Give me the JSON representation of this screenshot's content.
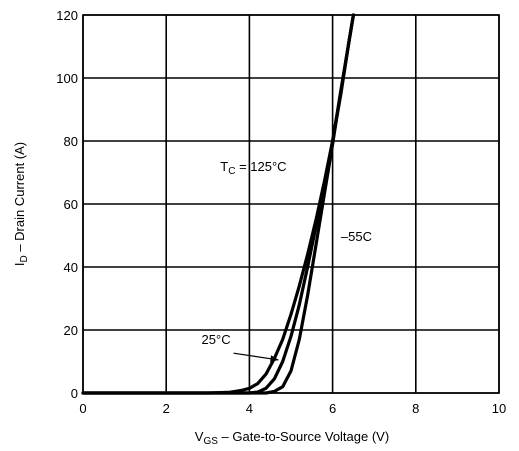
{
  "chart_data": {
    "type": "line",
    "title": "",
    "xlabel": {
      "main": "V",
      "sub": "GS",
      "rest": " – Gate-to-Source Voltage (V)"
    },
    "ylabel": {
      "main": "I",
      "sub": "D",
      "rest": " – Drain Current (A)"
    },
    "xlim": [
      0,
      10
    ],
    "ylim": [
      0,
      120
    ],
    "xticks": [
      "0",
      "2",
      "4",
      "6",
      "8",
      "10"
    ],
    "yticks": [
      "0",
      "20",
      "40",
      "60",
      "80",
      "100",
      "120"
    ],
    "grid": true,
    "series": [
      {
        "name": "T_C = 125°C",
        "x": [
          0,
          3.0,
          3.5,
          3.8,
          4.0,
          4.2,
          4.4,
          4.6,
          4.8,
          5.0,
          5.2,
          5.4,
          5.6,
          5.8,
          6.0,
          6.2,
          6.4,
          6.5
        ],
        "y": [
          0,
          0,
          0.2,
          0.8,
          1.5,
          3.0,
          6.0,
          11.0,
          17.0,
          25.0,
          34.0,
          44.0,
          55.0,
          67.0,
          80.0,
          95.0,
          112.0,
          120.0
        ]
      },
      {
        "name": "25°C",
        "x": [
          0,
          4.0,
          4.2,
          4.4,
          4.6,
          4.8,
          5.0,
          5.2,
          5.4,
          5.6,
          5.8,
          6.0,
          6.2,
          6.4,
          6.5
        ],
        "y": [
          0,
          0,
          0.3,
          1.5,
          4.5,
          10.0,
          18.0,
          28.0,
          40.0,
          53.0,
          66.0,
          80.0,
          96.0,
          112.0,
          120.0
        ]
      },
      {
        "name": "–55C",
        "x": [
          0,
          4.4,
          4.6,
          4.8,
          5.0,
          5.2,
          5.4,
          5.6,
          5.8,
          6.0,
          6.2,
          6.4,
          6.5
        ],
        "y": [
          0,
          0,
          0.5,
          2.0,
          7.0,
          17.0,
          31.0,
          47.0,
          63.0,
          79.0,
          96.0,
          112.0,
          120.0
        ]
      }
    ],
    "annotations": [
      {
        "text_main": "T",
        "text_sub": "C",
        "text_rest": " = 125°C",
        "x": 3.3,
        "y": 70.5
      },
      {
        "text_main": "–55C",
        "x": 6.2,
        "y": 48.3
      },
      {
        "text_main": "25°C",
        "x": 2.85,
        "y": 15.5,
        "arrow_to": [
          4.7,
          10.5
        ]
      }
    ]
  }
}
